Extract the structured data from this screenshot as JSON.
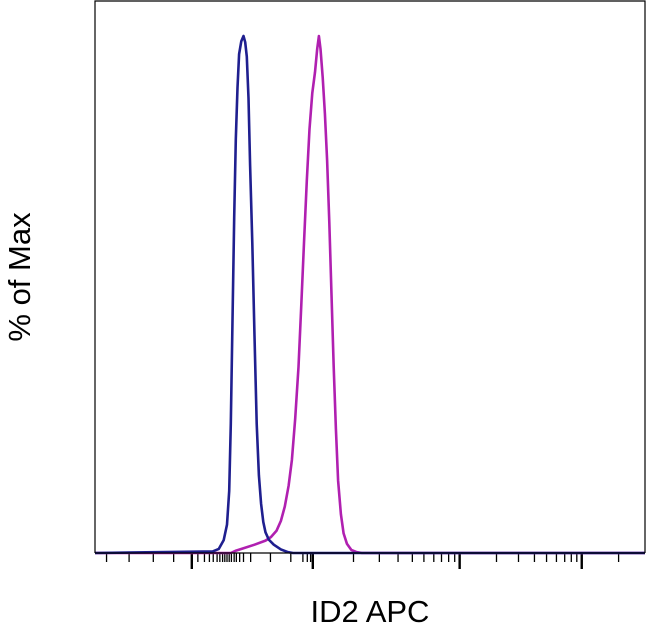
{
  "chart_data": {
    "type": "line",
    "title": "",
    "xlabel": "ID2 APC",
    "ylabel": "% of Max",
    "x_scale": "biexponential",
    "tick_labels_shown": false,
    "grid": false,
    "legend": "none",
    "ylim": [
      0,
      100
    ],
    "series": [
      {
        "color": "#1f1f8f",
        "points": [
          [
            0.0,
            0.0
          ],
          [
            0.214,
            0.3
          ],
          [
            0.225,
            0.8
          ],
          [
            0.234,
            2.5
          ],
          [
            0.24,
            5.5
          ],
          [
            0.244,
            12.0
          ],
          [
            0.247,
            25.0
          ],
          [
            0.25,
            45.0
          ],
          [
            0.253,
            65.0
          ],
          [
            0.256,
            80.0
          ],
          [
            0.259,
            90.0
          ],
          [
            0.262,
            96.5
          ],
          [
            0.266,
            99.0
          ],
          [
            0.27,
            100.0
          ],
          [
            0.273,
            98.8
          ],
          [
            0.276,
            96.0
          ],
          [
            0.279,
            88.0
          ],
          [
            0.282,
            75.0
          ],
          [
            0.286,
            60.0
          ],
          [
            0.29,
            42.0
          ],
          [
            0.294,
            25.0
          ],
          [
            0.298,
            15.0
          ],
          [
            0.302,
            9.5
          ],
          [
            0.306,
            6.0
          ],
          [
            0.31,
            4.0
          ],
          [
            0.316,
            2.6
          ],
          [
            0.325,
            1.6
          ],
          [
            0.338,
            0.7
          ],
          [
            0.35,
            0.2
          ],
          [
            0.36,
            0.0
          ],
          [
            1.0,
            0.0
          ]
        ]
      },
      {
        "color": "#b020b0",
        "points": [
          [
            0.0,
            0.0
          ],
          [
            0.247,
            0.0
          ],
          [
            0.255,
            0.4
          ],
          [
            0.27,
            0.9
          ],
          [
            0.29,
            1.6
          ],
          [
            0.31,
            2.4
          ],
          [
            0.32,
            3.1
          ],
          [
            0.33,
            4.3
          ],
          [
            0.338,
            6.2
          ],
          [
            0.345,
            9.0
          ],
          [
            0.352,
            13.0
          ],
          [
            0.358,
            18.0
          ],
          [
            0.364,
            26.0
          ],
          [
            0.37,
            36.0
          ],
          [
            0.375,
            48.0
          ],
          [
            0.38,
            60.0
          ],
          [
            0.385,
            72.0
          ],
          [
            0.39,
            82.0
          ],
          [
            0.395,
            89.0
          ],
          [
            0.4,
            93.0
          ],
          [
            0.404,
            97.5
          ],
          [
            0.407,
            100.0
          ],
          [
            0.41,
            97.5
          ],
          [
            0.414,
            92.0
          ],
          [
            0.418,
            85.0
          ],
          [
            0.422,
            76.0
          ],
          [
            0.426,
            64.0
          ],
          [
            0.43,
            50.0
          ],
          [
            0.434,
            36.0
          ],
          [
            0.438,
            24.0
          ],
          [
            0.442,
            14.0
          ],
          [
            0.447,
            7.5
          ],
          [
            0.452,
            3.8
          ],
          [
            0.458,
            1.8
          ],
          [
            0.466,
            0.6
          ],
          [
            0.475,
            0.2
          ],
          [
            0.485,
            0.0
          ],
          [
            1.0,
            0.0
          ]
        ]
      }
    ],
    "x_ticks": {
      "major": [
        0.176,
        0.396,
        0.663,
        0.885
      ],
      "minor": [
        0.021,
        0.062,
        0.106,
        0.143,
        0.187,
        0.199,
        0.208,
        0.215,
        0.222,
        0.227,
        0.232,
        0.236,
        0.24,
        0.244,
        0.248,
        0.253,
        0.257,
        0.263,
        0.27,
        0.283,
        0.319,
        0.356,
        0.378,
        0.386,
        0.392,
        0.47,
        0.517,
        0.551,
        0.577,
        0.598,
        0.616,
        0.63,
        0.643,
        0.654,
        0.73,
        0.77,
        0.799,
        0.821,
        0.839,
        0.854,
        0.866,
        0.876,
        0.952
      ]
    }
  }
}
